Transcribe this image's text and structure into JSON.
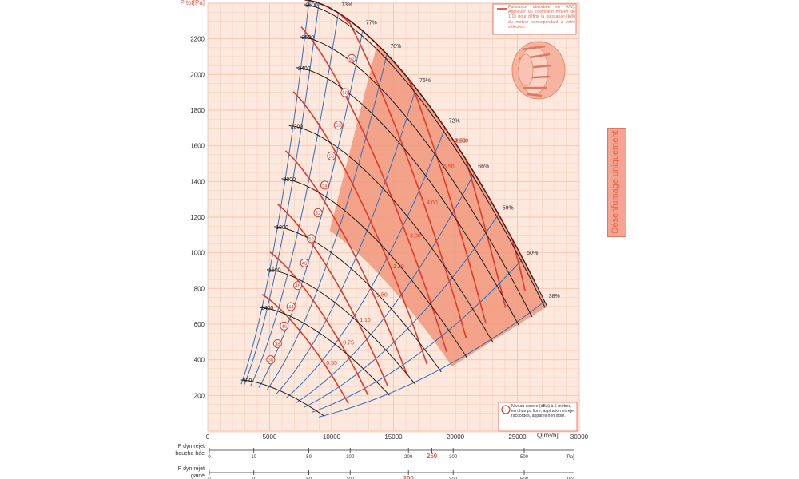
{
  "chart_data": {
    "type": "line",
    "title": "",
    "xlabel": "Q[m³/h]",
    "ylabel": "P tot[Pa]",
    "xlim": [
      0,
      30000
    ],
    "ylim": [
      0,
      2400
    ],
    "x_ticks": [
      "0",
      "5000",
      "10000",
      "15000",
      "20000",
      "25000",
      "30000"
    ],
    "y_ticks": [
      "200",
      "400",
      "600",
      "800",
      "1000",
      "1200",
      "1400",
      "1600",
      "1800",
      "2000",
      "2200"
    ],
    "grid": true,
    "speed_unit": "tr/min",
    "speed_curves": [
      {
        "label": "2615",
        "rpm": 2615
      },
      {
        "label": "2600",
        "rpm": 2600
      },
      {
        "label": "2500",
        "rpm": 2500
      },
      {
        "label": "2400",
        "rpm": 2400
      },
      {
        "label": "2200",
        "rpm": 2200
      },
      {
        "label": "2000",
        "rpm": 2000
      },
      {
        "label": "1800",
        "rpm": 1800
      },
      {
        "label": "1600",
        "rpm": 1600
      },
      {
        "label": "1400",
        "rpm": 1400
      },
      {
        "label": "900",
        "rpm": 900
      }
    ],
    "efficiency_labels": [
      "60%",
      "66%",
      "73%",
      "77%",
      "78%",
      "76%",
      "72%",
      "66%",
      "59%",
      "50%",
      "38%"
    ],
    "power_labels_kw": [
      "0.55",
      "0.75",
      "1.10",
      "1.50",
      "2.20",
      "3.00",
      "4.00",
      "5.50",
      "7.50",
      "9.00",
      "11.00"
    ],
    "sound_levels_dba": [
      "36",
      "38",
      "40",
      "44",
      "46",
      "48",
      "50",
      "52",
      "54",
      "56",
      "58",
      "60",
      "62"
    ],
    "power_note": "Puissance absorbée en (kW). Appliquer un coefficient moyen de 1.15 pour définir la puissance (kW) du moteur correspondant à votre sélection.",
    "sound_note": "Niveau sonore (dBA) à 6 mètres, en champs libre, aspiration et rejet raccordés, appareil non isolé.",
    "legend_position": "top-right",
    "side_label": "Désenfumage uniquement",
    "scale_rows": [
      {
        "label_line1": "P dyn rejet",
        "label_line2": "bouche bée",
        "ticks": [
          "0",
          "10",
          "50",
          "100",
          "200",
          "250",
          "300",
          "500"
        ],
        "highlight": "250",
        "unit": "[Pa]"
      },
      {
        "label_line1": "P dyn rejet",
        "label_line2": "gainé",
        "ticks": [
          "0",
          "10",
          "50",
          "100",
          "200",
          "300",
          "500"
        ],
        "highlight": "200",
        "unit": "[Pa]"
      }
    ],
    "colors": {
      "background": "#fde8dd",
      "grid": "#f6c3b0",
      "axis_text": "#e8634a",
      "speed": "#1f1f1f",
      "efficiency": "#2f6fb8",
      "power": "#e03a2a",
      "shade": "#f2977c",
      "highlight": "#e8634a"
    }
  }
}
